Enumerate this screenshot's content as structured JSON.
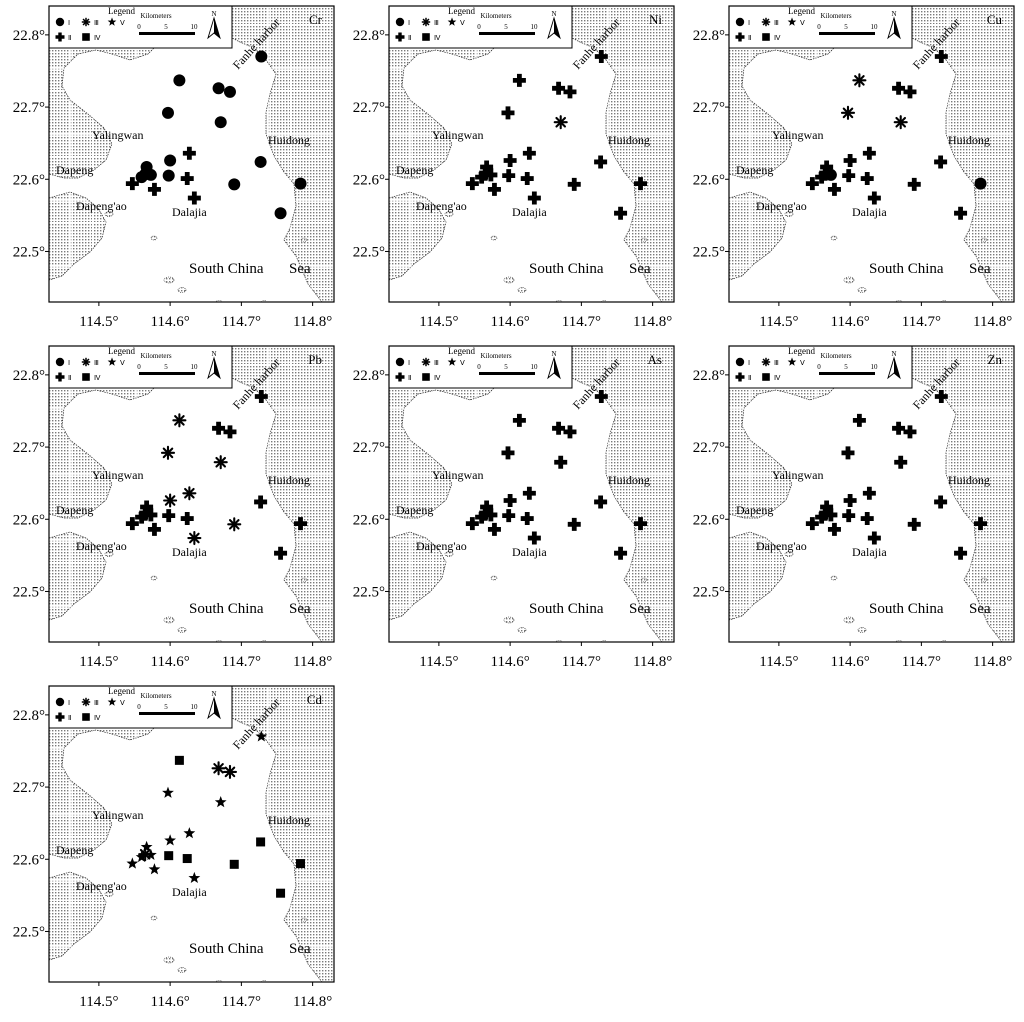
{
  "figure_kind": "Spatial distribution maps of sediment heavy metal classes (Daya Bay)",
  "colors": {
    "land_hatch": "#7a7a7a",
    "water": "#ffffff",
    "symbol": "#000000",
    "frame": "#000000"
  },
  "axes": {
    "x_ticks": [
      "114.5°",
      "114.6°",
      "114.7°",
      "114.8°"
    ],
    "x_values": [
      114.5,
      114.6,
      114.7,
      114.8
    ],
    "y_ticks": [
      "22.8°",
      "22.7°",
      "22.6°",
      "22.5°"
    ],
    "y_values": [
      22.8,
      22.7,
      22.6,
      22.5
    ],
    "lon_range": [
      114.43,
      114.83
    ],
    "lat_range": [
      22.43,
      22.84
    ]
  },
  "legend": {
    "title": "Legend",
    "classes": [
      {
        "symbol": "circle-icon",
        "label": "Ⅰ"
      },
      {
        "symbol": "asterisk-icon",
        "label": "Ⅲ"
      },
      {
        "symbol": "star-icon",
        "label": "Ⅴ"
      },
      {
        "symbol": "plus-icon",
        "label": "Ⅱ"
      },
      {
        "symbol": "square-icon",
        "label": "Ⅳ"
      }
    ],
    "scale_title": "Kilometers",
    "scale_ticks": [
      "0",
      "5",
      "10"
    ],
    "north": "N"
  },
  "places": {
    "fanhe": "Fanhe harbor",
    "yalingwan": "Yalingwan",
    "huidong": "Huidong",
    "dapeng": "Dapeng",
    "dapengao": "Dapeng'ao",
    "dalajia": "Dalajia",
    "sea_a": "South China",
    "sea_b": "Sea"
  },
  "stations": [
    {
      "id": 1,
      "lon": 114.547,
      "lat": 22.594
    },
    {
      "id": 2,
      "lon": 114.56,
      "lat": 22.603
    },
    {
      "id": 3,
      "lon": 114.567,
      "lat": 22.617
    },
    {
      "id": 4,
      "lon": 114.565,
      "lat": 22.607
    },
    {
      "id": 5,
      "lon": 114.573,
      "lat": 22.606
    },
    {
      "id": 6,
      "lon": 114.578,
      "lat": 22.586
    },
    {
      "id": 7,
      "lon": 114.598,
      "lat": 22.605
    },
    {
      "id": 8,
      "lon": 114.6,
      "lat": 22.626
    },
    {
      "id": 9,
      "lon": 114.597,
      "lat": 22.692
    },
    {
      "id": 10,
      "lon": 114.613,
      "lat": 22.737
    },
    {
      "id": 11,
      "lon": 114.624,
      "lat": 22.601
    },
    {
      "id": 12,
      "lon": 114.627,
      "lat": 22.636
    },
    {
      "id": 13,
      "lon": 114.634,
      "lat": 22.574
    },
    {
      "id": 14,
      "lon": 114.668,
      "lat": 22.726
    },
    {
      "id": 15,
      "lon": 114.684,
      "lat": 22.721
    },
    {
      "id": 16,
      "lon": 114.671,
      "lat": 22.679
    },
    {
      "id": 17,
      "lon": 114.69,
      "lat": 22.593
    },
    {
      "id": 18,
      "lon": 114.728,
      "lat": 22.77
    },
    {
      "id": 19,
      "lon": 114.727,
      "lat": 22.624
    },
    {
      "id": 20,
      "lon": 114.783,
      "lat": 22.594
    },
    {
      "id": 21,
      "lon": 114.755,
      "lat": 22.553
    }
  ],
  "maps": [
    {
      "metal": "Cr",
      "classes": [
        "II",
        "I",
        "I",
        "I",
        "I",
        "II",
        "I",
        "I",
        "I",
        "I",
        "II",
        "II",
        "II",
        "I",
        "I",
        "I",
        "I",
        "I",
        "I",
        "I",
        "I"
      ]
    },
    {
      "metal": "Ni",
      "classes": [
        "II",
        "II",
        "II",
        "II",
        "II",
        "II",
        "II",
        "II",
        "II",
        "II",
        "II",
        "II",
        "II",
        "II",
        "II",
        "III",
        "II",
        "II",
        "II",
        "II",
        "II"
      ]
    },
    {
      "metal": "Cu",
      "classes": [
        "II",
        "II",
        "II",
        "II",
        "I",
        "II",
        "II",
        "II",
        "III",
        "III",
        "II",
        "II",
        "II",
        "II",
        "II",
        "III",
        "II",
        "II",
        "II",
        "I",
        "II"
      ]
    },
    {
      "metal": "Pb",
      "classes": [
        "II",
        "II",
        "II",
        "II",
        "II",
        "II",
        "II",
        "III",
        "III",
        "III",
        "II",
        "III",
        "III",
        "II",
        "II",
        "III",
        "III",
        "II",
        "II",
        "II",
        "II"
      ]
    },
    {
      "metal": "As",
      "classes": [
        "II",
        "II",
        "II",
        "II",
        "II",
        "II",
        "II",
        "II",
        "II",
        "II",
        "II",
        "II",
        "II",
        "II",
        "II",
        "II",
        "II",
        "II",
        "II",
        "II",
        "II"
      ]
    },
    {
      "metal": "Zn",
      "classes": [
        "II",
        "II",
        "II",
        "II",
        "II",
        "II",
        "II",
        "II",
        "II",
        "II",
        "II",
        "II",
        "II",
        "II",
        "II",
        "II",
        "II",
        "II",
        "II",
        "II",
        "II"
      ]
    },
    {
      "metal": "Cd",
      "classes": [
        "V",
        "V",
        "V",
        "III",
        "V",
        "V",
        "IV",
        "V",
        "V",
        "IV",
        "IV",
        "V",
        "V",
        "III",
        "III",
        "V",
        "IV",
        "V",
        "IV",
        "IV",
        "IV"
      ]
    }
  ]
}
